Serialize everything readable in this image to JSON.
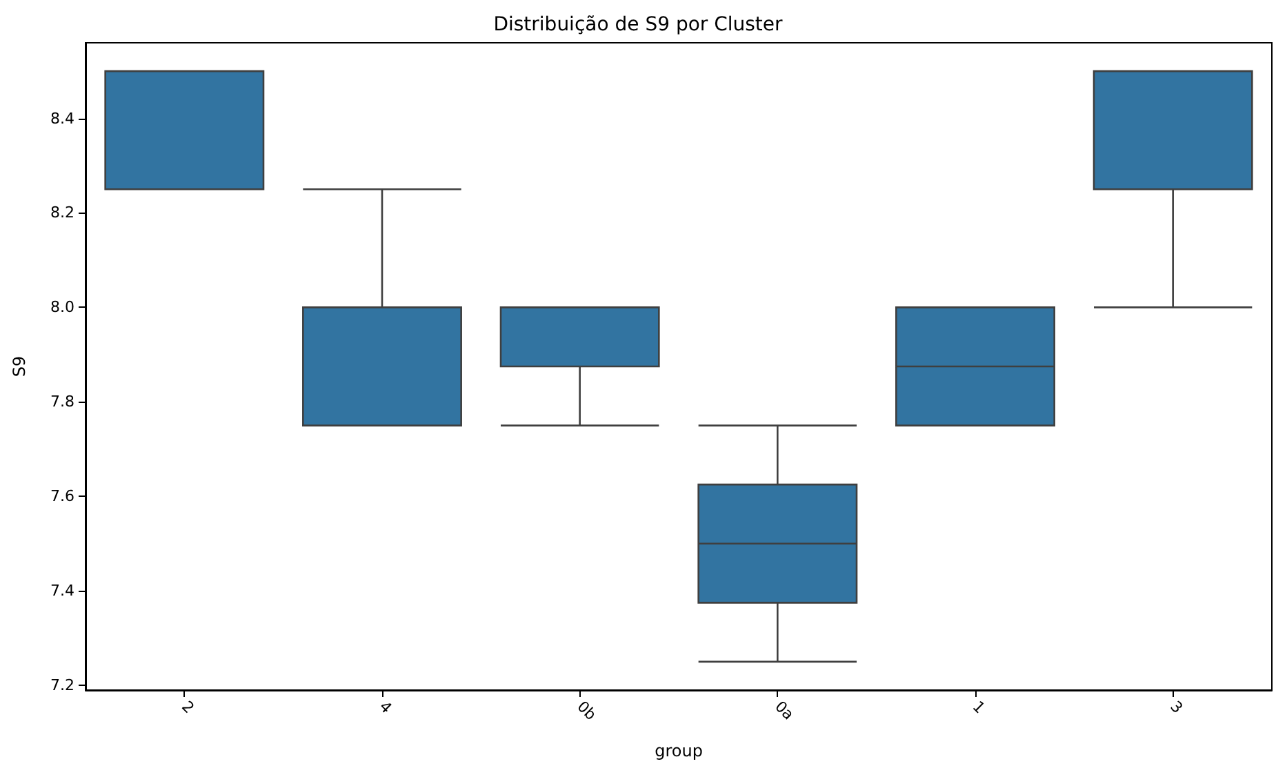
{
  "chart_data": {
    "type": "box",
    "title": "Distribuição de S9 por Cluster",
    "xlabel": "group",
    "ylabel": "S9",
    "categories": [
      "2",
      "4",
      "0b",
      "0a",
      "1",
      "3"
    ],
    "boxes": [
      {
        "low": 8.25,
        "q1": 8.25,
        "median": 8.5,
        "q3": 8.5,
        "high": 8.5
      },
      {
        "low": 7.75,
        "q1": 7.75,
        "median": 7.75,
        "q3": 8.0,
        "high": 8.25
      },
      {
        "low": 7.75,
        "q1": 7.875,
        "median": 8.0,
        "q3": 8.0,
        "high": 8.0
      },
      {
        "low": 7.25,
        "q1": 7.375,
        "median": 7.5,
        "q3": 7.625,
        "high": 7.75
      },
      {
        "low": 7.75,
        "q1": 7.75,
        "median": 7.875,
        "q3": 8.0,
        "high": 8.0
      },
      {
        "low": 8.0,
        "q1": 8.25,
        "median": 8.5,
        "q3": 8.5,
        "high": 8.5
      }
    ],
    "color": "#3274a1",
    "ylim": [
      7.19,
      8.56
    ],
    "yticks": [
      {
        "value": 7.2,
        "label": "7.2"
      },
      {
        "value": 7.4,
        "label": "7.4"
      },
      {
        "value": 7.6,
        "label": "7.6"
      },
      {
        "value": 7.8,
        "label": "7.8"
      },
      {
        "value": 8.0,
        "label": "8.0"
      },
      {
        "value": 8.2,
        "label": "8.2"
      },
      {
        "value": 8.4,
        "label": "8.4"
      }
    ],
    "grid": false
  }
}
